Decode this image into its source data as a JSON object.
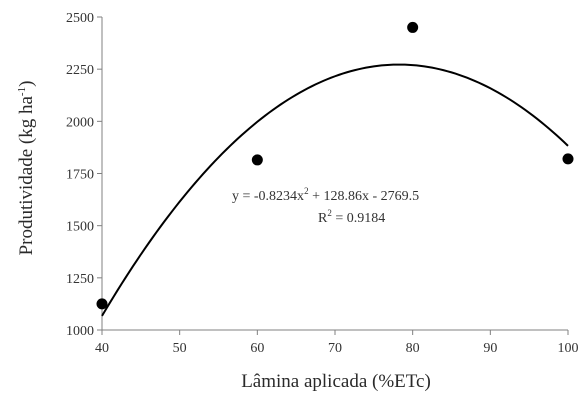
{
  "chart_data": {
    "type": "scatter",
    "title": "",
    "xlabel": "Lâmina aplicada (%ETc)",
    "ylabel_main": "Produtividade (kg ha",
    "ylabel_sup": "-1",
    "ylabel_close": ")",
    "xlim": [
      40,
      100
    ],
    "ylim": [
      1000,
      2500
    ],
    "xticks": [
      "40",
      "50",
      "60",
      "70",
      "80",
      "90",
      "100"
    ],
    "yticks": [
      "1000",
      "1250",
      "1500",
      "1750",
      "2000",
      "2250",
      "2500"
    ],
    "points": [
      {
        "x": 40,
        "y": 1125
      },
      {
        "x": 60,
        "y": 1815
      },
      {
        "x": 80,
        "y": 2450
      },
      {
        "x": 100,
        "y": 1820
      }
    ],
    "trendline": {
      "a": -0.8234,
      "b": 128.86,
      "c": -2769.5
    },
    "equation": "y = -0.8234x",
    "equation_sup": "2",
    "equation_rest": " + 128.86x - 2769.5",
    "r2_label": "R",
    "r2_sup": "2",
    "r2_value": " = 0.9184",
    "grid": false,
    "legend": "none",
    "colors": {
      "axis": "#808080",
      "marker": "#000000",
      "curve": "#000000",
      "text": "#333333"
    }
  }
}
